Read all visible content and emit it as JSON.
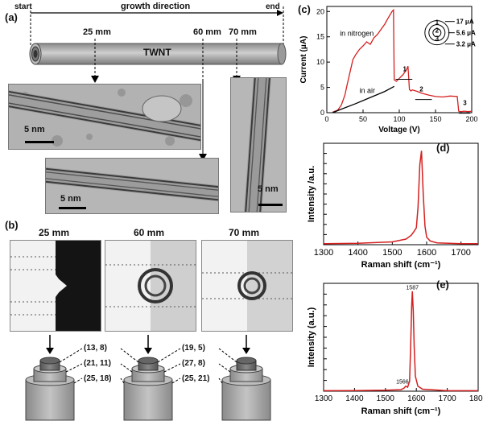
{
  "panel_labels": {
    "a": "(a)",
    "b": "(b)",
    "c": "(c)",
    "d": "(d)",
    "e": "(e)"
  },
  "panel_a": {
    "start": "start",
    "end": "end",
    "direction": "growth direction",
    "tube_label": "TWNT",
    "positions": [
      "25 mm",
      "60 mm",
      "70 mm"
    ],
    "scale_bars": [
      "5 nm",
      "5 nm",
      "5 nm"
    ]
  },
  "panel_b": {
    "titles": [
      "25 mm",
      "60 mm",
      "70 mm"
    ],
    "chirality_groups": [
      [
        "(13, 8)",
        "(21, 11)",
        "(25, 18)"
      ],
      [
        "(19, 5)",
        "(27, 8)",
        "(25, 21)"
      ]
    ]
  },
  "chart_data": [
    {
      "type": "line",
      "panel": "c",
      "xlabel": "Voltage (V)",
      "ylabel": "Current (μA)",
      "xlim": [
        0,
        200
      ],
      "ylim": [
        0,
        21
      ],
      "xticks": [
        0,
        50,
        100,
        150,
        200
      ],
      "yticks": [
        0,
        5,
        10,
        15,
        20
      ],
      "series": [
        {
          "name": "in nitrogen",
          "color": "#d42020",
          "x": [
            8,
            15,
            20,
            25,
            28,
            32,
            36,
            40,
            45,
            50,
            55,
            60,
            65,
            70,
            75,
            80,
            85,
            90,
            92,
            93,
            96,
            100,
            105,
            110,
            112,
            114,
            116,
            118,
            120,
            125,
            130,
            140,
            150,
            160,
            170,
            180,
            182,
            185,
            190,
            195,
            200
          ],
          "y": [
            0.1,
            0.5,
            1.5,
            3.5,
            5.5,
            8,
            10.5,
            11.5,
            12.5,
            13.2,
            14,
            13.5,
            14.8,
            15.5,
            16.5,
            17.5,
            18.8,
            20,
            20.3,
            6.5,
            6.2,
            6.8,
            7.5,
            8.5,
            9.2,
            4.6,
            4.3,
            4.5,
            4.4,
            4.2,
            3.9,
            3.5,
            3.2,
            3.1,
            3.3,
            3.2,
            0.3,
            0.2,
            0.3,
            0.2,
            0.3
          ]
        },
        {
          "name": "in air",
          "color": "#000000",
          "x": [
            8,
            20,
            40,
            60,
            80,
            93
          ],
          "y": [
            0,
            0.7,
            1.8,
            3.0,
            4.2,
            5.2
          ]
        }
      ],
      "annotations": {
        "in_nitrogen": "in nitrogen",
        "in_air": "in air",
        "steps": [
          "1",
          "2",
          "3"
        ],
        "ring_labels": [
          "1",
          "2",
          "3"
        ],
        "ring_currents": [
          "17 μA",
          "5.6 μA",
          "3.2 μA"
        ]
      }
    },
    {
      "type": "line",
      "panel": "d",
      "xlabel": "Raman shift (cm⁻¹)",
      "ylabel": "Intensity /a.u.",
      "xlim": [
        1300,
        1750
      ],
      "xticks": [
        1300,
        1400,
        1500,
        1600,
        1700
      ],
      "series": [
        {
          "color": "#d42020",
          "x": [
            1300,
            1400,
            1500,
            1540,
            1555,
            1563,
            1570,
            1575,
            1580,
            1585,
            1590,
            1595,
            1600,
            1610,
            1630,
            1700,
            1750
          ],
          "y": [
            0.01,
            0.015,
            0.03,
            0.06,
            0.1,
            0.14,
            0.18,
            0.4,
            0.85,
            1.0,
            0.55,
            0.2,
            0.08,
            0.04,
            0.02,
            0.01,
            0.01
          ]
        }
      ]
    },
    {
      "type": "line",
      "panel": "e",
      "xlabel": "Raman shift (cm⁻¹)",
      "ylabel": "Intensity (a.u.)",
      "xlim": [
        1300,
        1800
      ],
      "xticks": [
        1300,
        1400,
        1500,
        1600,
        1700,
        1800
      ],
      "series": [
        {
          "color": "#d42020",
          "x": [
            1300,
            1400,
            1500,
            1550,
            1560,
            1566,
            1572,
            1578,
            1582,
            1585,
            1587,
            1590,
            1593,
            1597,
            1605,
            1620,
            1700,
            1800
          ],
          "y": [
            0.005,
            0.006,
            0.01,
            0.015,
            0.03,
            0.05,
            0.04,
            0.1,
            0.5,
            0.85,
            1.0,
            0.8,
            0.45,
            0.15,
            0.05,
            0.02,
            0.005,
            0.005
          ]
        }
      ],
      "peak_labels": [
        "1587",
        "1566"
      ]
    }
  ]
}
